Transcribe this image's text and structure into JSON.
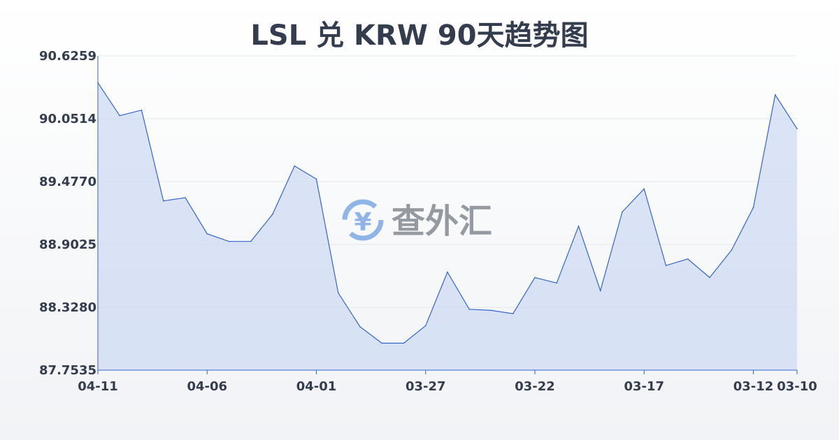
{
  "chart_data": {
    "type": "area",
    "title": "LSL 兑 KRW 90天趋势图",
    "xlabel": "",
    "ylabel": "",
    "ylim": [
      87.7535,
      90.6259
    ],
    "y_ticks": [
      "90.6259",
      "90.0514",
      "89.4770",
      "88.9025",
      "88.3280",
      "87.7535"
    ],
    "x_ticks": [
      "04-11",
      "04-06",
      "04-01",
      "03-27",
      "03-22",
      "03-17",
      "03-12",
      "03-10"
    ],
    "grid": true,
    "x": [
      "04-11",
      "04-10",
      "04-09",
      "04-08",
      "04-07",
      "04-06",
      "04-05",
      "04-04",
      "04-03",
      "04-02",
      "04-01",
      "03-31",
      "03-30",
      "03-29",
      "03-28",
      "03-27",
      "03-26",
      "03-25",
      "03-24",
      "03-23",
      "03-22",
      "03-21",
      "03-20",
      "03-19",
      "03-18",
      "03-17",
      "03-16",
      "03-15",
      "03-14",
      "03-13",
      "03-12",
      "03-11",
      "03-10"
    ],
    "values": [
      90.38,
      90.08,
      90.13,
      89.3,
      89.33,
      89.0,
      88.93,
      88.93,
      89.18,
      89.62,
      89.5,
      88.46,
      88.15,
      88.0,
      88.0,
      88.16,
      88.65,
      88.31,
      88.3,
      88.27,
      88.6,
      88.55,
      89.07,
      88.48,
      89.2,
      89.41,
      88.71,
      88.77,
      88.6,
      88.85,
      89.24,
      90.27,
      89.96
    ],
    "colors": {
      "line": "#3366cc",
      "fill": "#c9d7f2"
    }
  },
  "watermark": {
    "text": "查外汇",
    "icon": "yen-exchange-icon"
  }
}
